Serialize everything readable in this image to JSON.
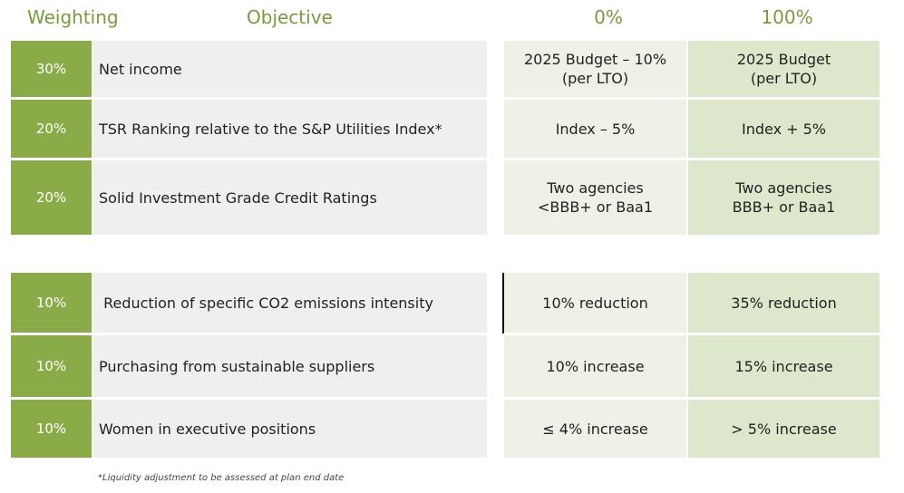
{
  "headers": {
    "weighting": "Weighting",
    "objective": "Objective",
    "col_0": "0%",
    "col_100": "100%"
  },
  "rows": [
    {
      "weight": "30%",
      "objective": "Net income",
      "zero": "2025 Budget – 10%\n(per LTO)",
      "hundred": "2025 Budget\n(per LTO)"
    },
    {
      "weight": "20%",
      "objective": "TSR Ranking relative to the S&P Utilities Index*",
      "zero": "Index – 5%",
      "hundred": "Index + 5%"
    },
    {
      "weight": "20%",
      "objective": "Solid Investment Grade Credit Ratings",
      "zero": "Two agencies\n<BBB+ or Baa1",
      "hundred": "Two agencies\nBBB+ or Baa1"
    },
    {
      "weight": "10%",
      "objective": " Reduction of specific CO2 emissions intensity",
      "zero": "10% reduction",
      "hundred": "35% reduction"
    },
    {
      "weight": "10%",
      "objective": "Purchasing from sustainable suppliers",
      "zero": "10% increase",
      "hundred": "15% increase"
    },
    {
      "weight": "10%",
      "objective": "Women in executive positions",
      "zero": "≤ 4% increase",
      "hundred": "> 5% increase"
    }
  ],
  "footnote": "*Liquidity adjustment to be assessed at plan end date",
  "colors": {
    "weight_cell": "#8aab47",
    "header_text": "#7a9a3c",
    "objective_cell": "#efefef",
    "zero_cell": "#eef2e6",
    "hundred_cell": "#dde7cc"
  }
}
